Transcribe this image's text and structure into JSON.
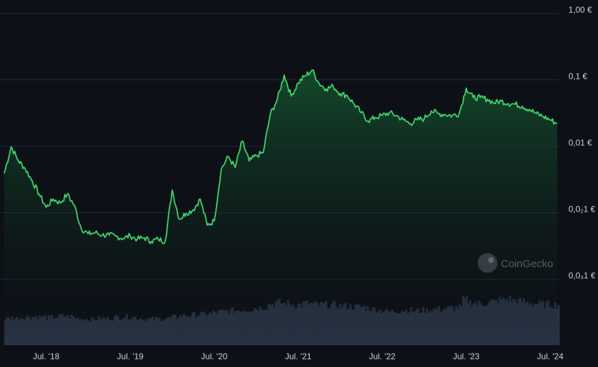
{
  "chart_data": {
    "type": "area",
    "y_scale": "log",
    "y_tick_labels": [
      {
        "value": 1,
        "label": "1,00 €"
      },
      {
        "value": 0.1,
        "label": "0,1 €"
      },
      {
        "value": 0.01,
        "label": "0,01 €"
      },
      {
        "value": 0.001,
        "label": "0,0₂1 €"
      },
      {
        "value": 0.0001,
        "label": "0,0₃1 €"
      }
    ],
    "x_tick_labels": [
      "Jul. '18",
      "Jul. '19",
      "Jul. '20",
      "Jul. '21",
      "Jul. '22",
      "Jul. '23",
      "Jul. '24"
    ],
    "watermark": "CoinGecko",
    "grid": true,
    "colors": {
      "background": "#0d1117",
      "line": "#3fd46b",
      "fill_top": "#14532d",
      "volume": "#283242",
      "grid": "#232a33",
      "label": "#c9d1d9"
    },
    "series": [
      {
        "x": [
          "2018-01",
          "2018-02",
          "2018-03",
          "2018-04",
          "2018-05",
          "2018-06",
          "2018-07",
          "2018-08",
          "2018-09",
          "2018-10",
          "2018-11",
          "2018-12",
          "2019-01",
          "2019-02",
          "2019-03",
          "2019-04",
          "2019-05",
          "2019-06",
          "2019-07",
          "2019-08",
          "2019-09",
          "2019-10",
          "2019-11",
          "2019-12",
          "2020-01",
          "2020-02",
          "2020-03",
          "2020-04",
          "2020-05",
          "2020-06",
          "2020-07",
          "2020-08",
          "2020-09",
          "2020-10",
          "2020-11",
          "2020-12",
          "2021-01",
          "2021-02",
          "2021-03",
          "2021-04",
          "2021-05",
          "2021-06",
          "2021-07",
          "2021-08",
          "2021-09",
          "2021-10",
          "2021-11",
          "2021-12",
          "2022-01",
          "2022-02",
          "2022-03",
          "2022-04",
          "2022-05",
          "2022-06",
          "2022-07",
          "2022-08",
          "2022-09",
          "2022-10",
          "2022-11",
          "2022-12",
          "2023-01",
          "2023-02",
          "2023-03",
          "2023-04",
          "2023-05",
          "2023-06",
          "2023-07",
          "2023-08",
          "2023-09",
          "2023-10",
          "2023-11",
          "2023-12",
          "2024-01",
          "2024-02",
          "2024-03",
          "2024-04",
          "2024-05",
          "2024-06",
          "2024-07",
          "2024-08"
        ],
        "y": [
          0.0039,
          0.0098,
          0.0061,
          0.0046,
          0.003,
          0.0019,
          0.0012,
          0.0016,
          0.0014,
          0.0019,
          0.0013,
          0.00058,
          0.00048,
          0.0005,
          0.00046,
          0.00046,
          0.00044,
          0.00041,
          0.00045,
          0.0004,
          0.00042,
          0.00037,
          0.0004,
          0.00037,
          0.0022,
          0.0008,
          0.00098,
          0.0011,
          0.0016,
          0.00065,
          0.00075,
          0.0045,
          0.007,
          0.0048,
          0.012,
          0.006,
          0.0072,
          0.008,
          0.03,
          0.05,
          0.118,
          0.057,
          0.09,
          0.115,
          0.14,
          0.088,
          0.073,
          0.08,
          0.062,
          0.058,
          0.043,
          0.032,
          0.024,
          0.027,
          0.029,
          0.032,
          0.029,
          0.025,
          0.022,
          0.025,
          0.026,
          0.034,
          0.031,
          0.03,
          0.029,
          0.031,
          0.075,
          0.054,
          0.054,
          0.051,
          0.045,
          0.048,
          0.044,
          0.043,
          0.04,
          0.036,
          0.031,
          0.028,
          0.025,
          0.022
        ]
      }
    ],
    "volume_relative": [
      0.47,
      0.48,
      0.49,
      0.5,
      0.51,
      0.5,
      0.49,
      0.5,
      0.52,
      0.51,
      0.48,
      0.47,
      0.46,
      0.47,
      0.47,
      0.48,
      0.5,
      0.51,
      0.5,
      0.48,
      0.46,
      0.47,
      0.47,
      0.48,
      0.5,
      0.52,
      0.53,
      0.54,
      0.55,
      0.56,
      0.58,
      0.6,
      0.61,
      0.62,
      0.63,
      0.64,
      0.66,
      0.68,
      0.73,
      0.76,
      0.74,
      0.73,
      0.72,
      0.74,
      0.73,
      0.72,
      0.72,
      0.71,
      0.7,
      0.69,
      0.68,
      0.68,
      0.66,
      0.64,
      0.62,
      0.6,
      0.61,
      0.62,
      0.62,
      0.61,
      0.62,
      0.63,
      0.64,
      0.65,
      0.66,
      0.67,
      0.8,
      0.76,
      0.74,
      0.75,
      0.77,
      0.8,
      0.82,
      0.8,
      0.78,
      0.76,
      0.74,
      0.73,
      0.73,
      0.72
    ]
  }
}
